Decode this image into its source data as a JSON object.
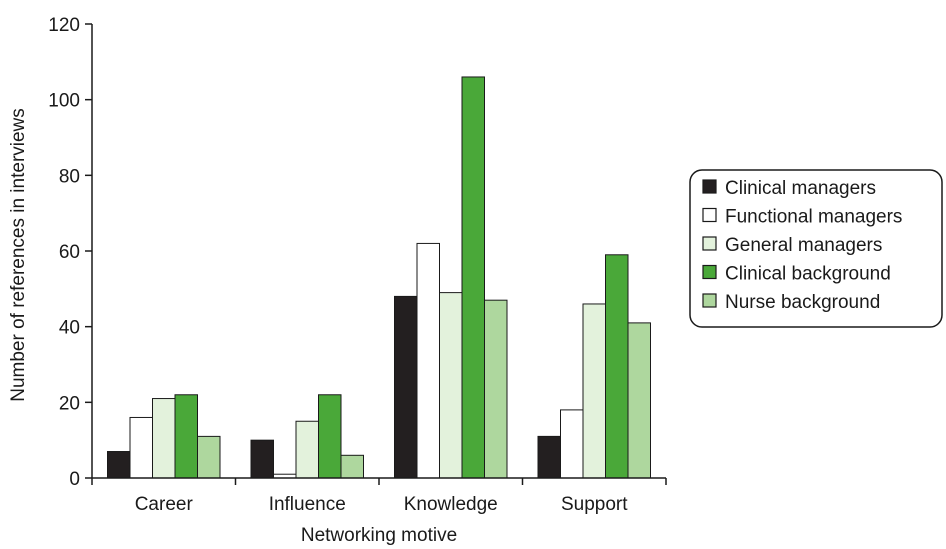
{
  "chart_data": {
    "type": "bar",
    "xlabel": "Networking motive",
    "ylabel": "Number of references in interviews",
    "ylim": [
      0,
      120
    ],
    "yticks": [
      0,
      20,
      40,
      60,
      80,
      100,
      120
    ],
    "grid": false,
    "legend_position": "right",
    "categories": [
      "Career",
      "Influence",
      "Knowledge",
      "Support"
    ],
    "series": [
      {
        "name": "Clinical managers",
        "color": "#231f20",
        "values": [
          7,
          10,
          48,
          11
        ]
      },
      {
        "name": "Functional managers",
        "color": "#ffffff",
        "values": [
          16,
          1,
          62,
          18
        ]
      },
      {
        "name": "General managers",
        "color": "#e3f2dc",
        "values": [
          21,
          15,
          49,
          46
        ]
      },
      {
        "name": "Clinical background",
        "color": "#4aa839",
        "values": [
          22,
          22,
          106,
          59
        ]
      },
      {
        "name": "Nurse background",
        "color": "#aed79e",
        "values": [
          11,
          6,
          47,
          41
        ]
      }
    ]
  }
}
